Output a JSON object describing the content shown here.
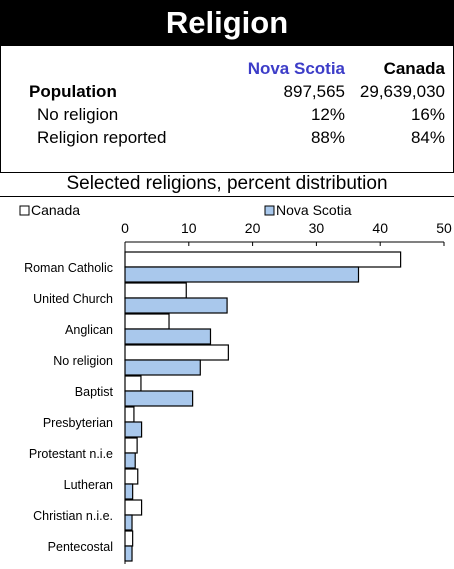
{
  "header": {
    "title": "Religion"
  },
  "summary": {
    "col1": "Nova Scotia",
    "col2": "Canada",
    "rows": [
      {
        "label": "Population",
        "v1": "897,565",
        "v2": "29,639,030"
      },
      {
        "label": "No religion",
        "v1": "12%",
        "v2": "16%"
      },
      {
        "label": "Religion reported",
        "v1": "88%",
        "v2": "84%"
      }
    ]
  },
  "colors": {
    "nova_scotia_fill": "#a9c8ec",
    "canada_fill": "#ffffff",
    "accent_text": "#3d3dc8"
  },
  "chart_data": {
    "type": "bar",
    "orientation": "horizontal",
    "title": "Selected religions, percent distribution",
    "categories": [
      "Roman Catholic",
      "United Church",
      "Anglican",
      "No religion",
      "Baptist",
      "Presbyterian",
      "Protestant n.i.e",
      "Lutheran",
      "Christian n.i.e.",
      "Pentecostal"
    ],
    "series": [
      {
        "name": "Canada",
        "values": [
          43.2,
          9.6,
          6.9,
          16.2,
          2.5,
          1.4,
          1.9,
          2.0,
          2.6,
          1.2
        ]
      },
      {
        "name": "Nova Scotia",
        "values": [
          36.6,
          16.0,
          13.4,
          11.8,
          10.6,
          2.6,
          1.6,
          1.2,
          1.1,
          1.1
        ]
      }
    ],
    "xlim": [
      0,
      50
    ],
    "xticks": [
      0,
      10,
      20,
      30,
      40,
      50
    ],
    "legend_position": "top",
    "grid": false
  }
}
